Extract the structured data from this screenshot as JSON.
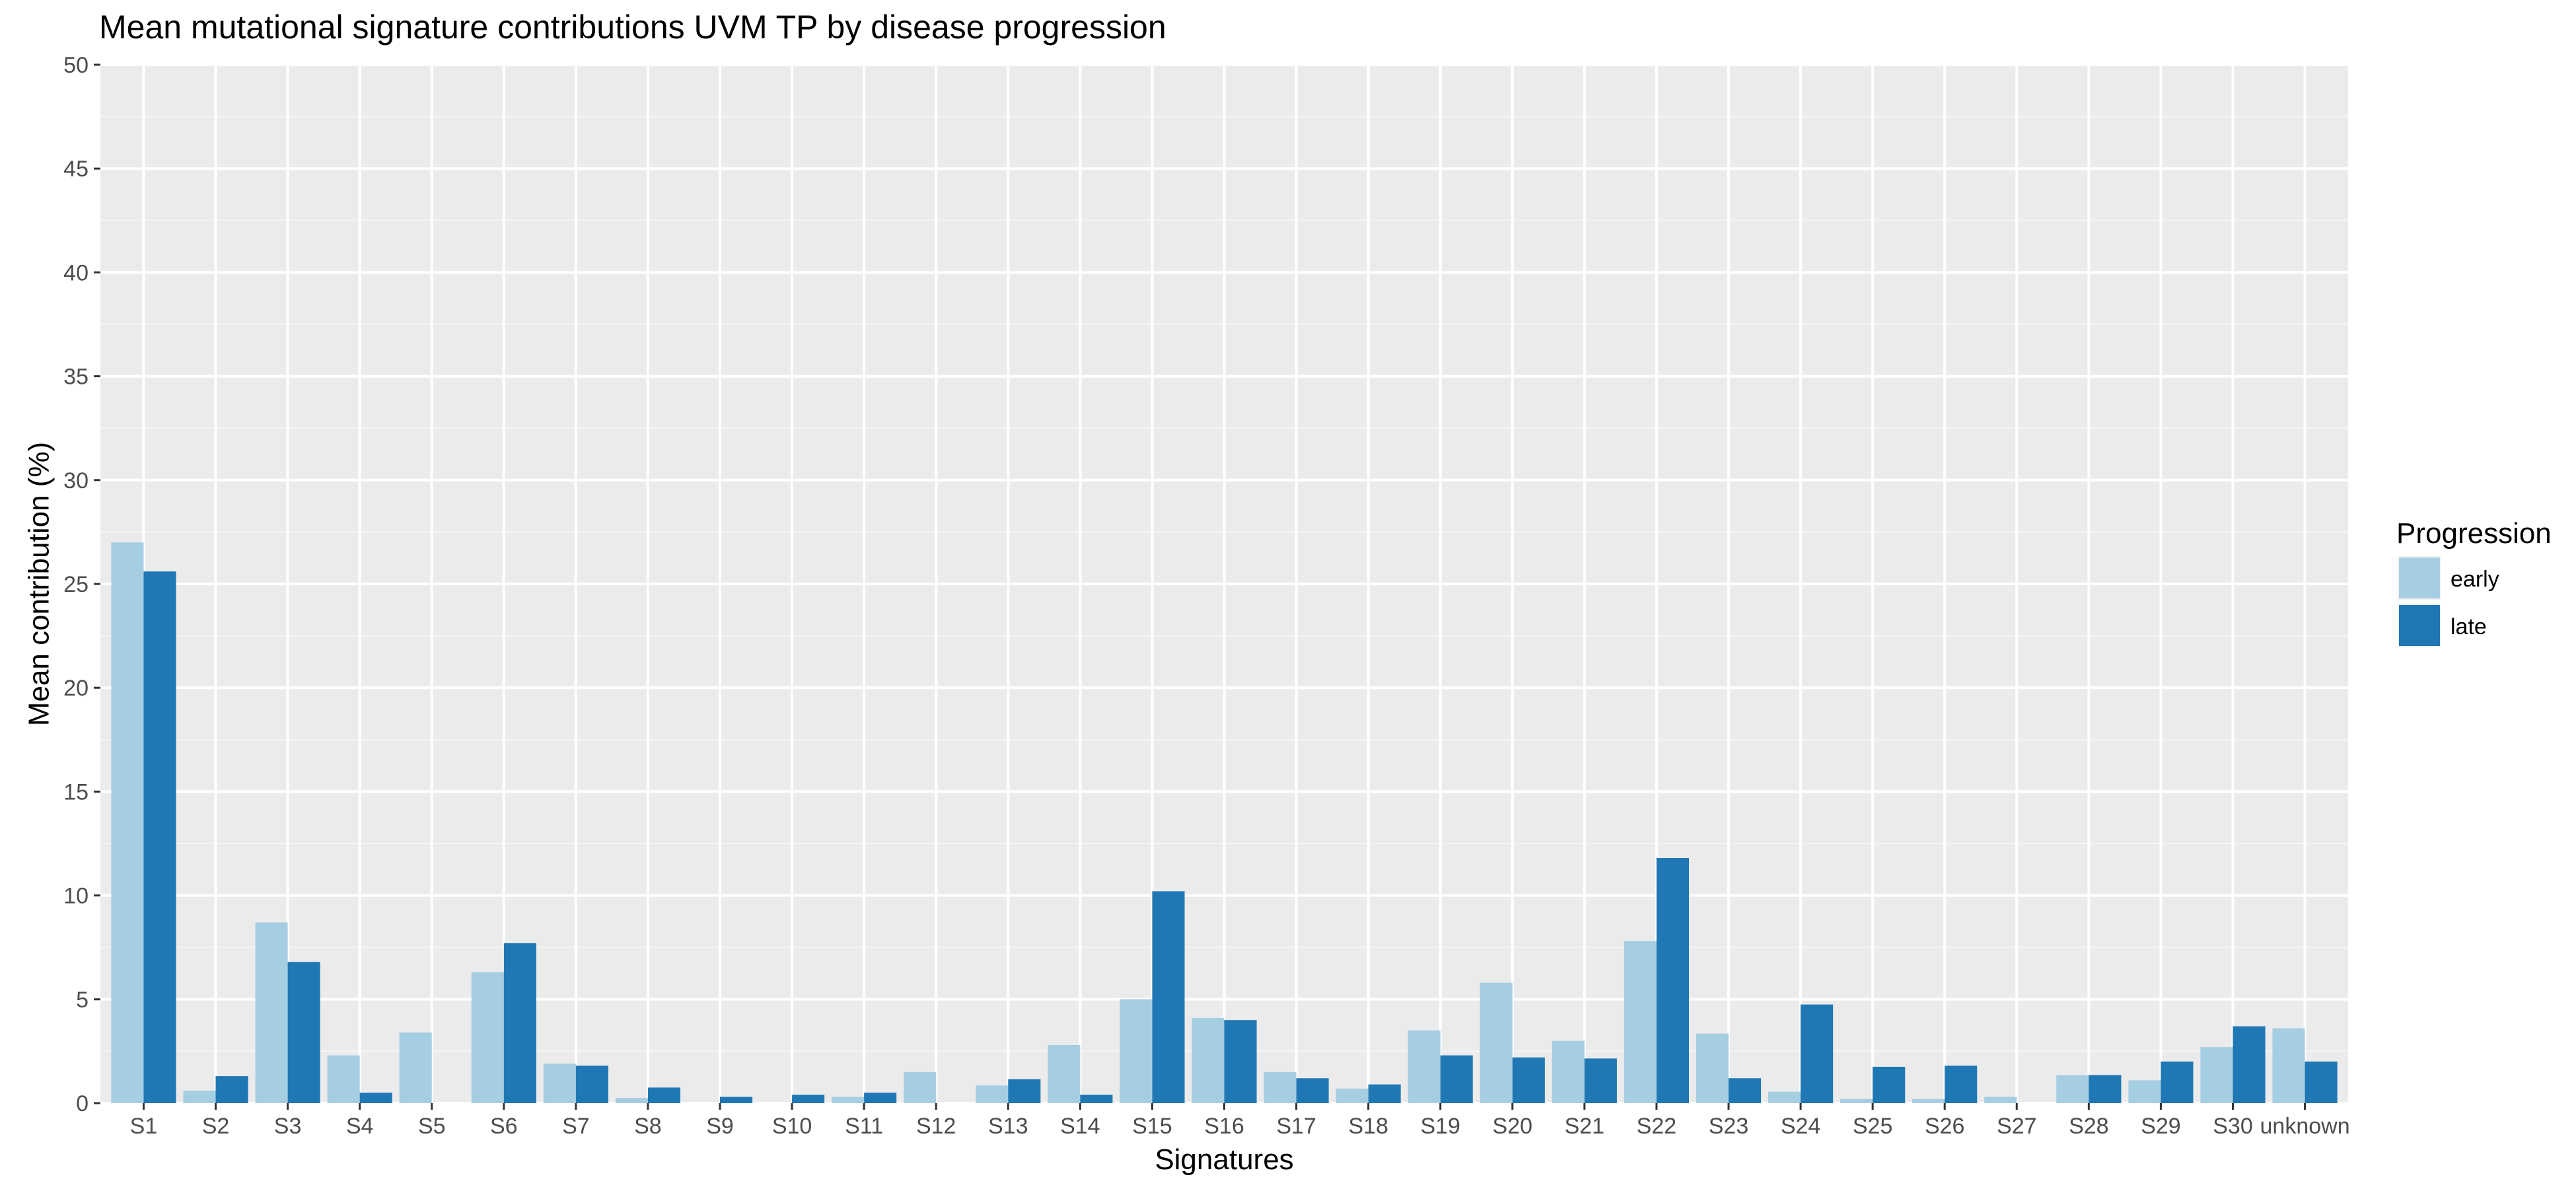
{
  "chart_data": {
    "type": "bar",
    "title": "Mean mutational signature contributions UVM TP by disease progression",
    "xlabel": "Signatures",
    "ylabel": "Mean contribution (%)",
    "ylim": [
      0,
      50
    ],
    "yticks": [
      0,
      5,
      10,
      15,
      20,
      25,
      30,
      35,
      40,
      45,
      50
    ],
    "grid": true,
    "legend_position": "right",
    "legend_title": "Progression",
    "categories": [
      "S1",
      "S2",
      "S3",
      "S4",
      "S5",
      "S6",
      "S7",
      "S8",
      "S9",
      "S10",
      "S11",
      "S12",
      "S13",
      "S14",
      "S15",
      "S16",
      "S17",
      "S18",
      "S19",
      "S20",
      "S21",
      "S22",
      "S23",
      "S24",
      "S25",
      "S26",
      "S27",
      "S28",
      "S29",
      "S30",
      "unknown"
    ],
    "series": [
      {
        "name": "early",
        "color": "#a6cee3",
        "values": [
          27.0,
          0.6,
          8.7,
          2.3,
          3.4,
          6.3,
          1.9,
          0.25,
          0.0,
          0.0,
          0.3,
          1.5,
          0.85,
          2.8,
          5.0,
          4.1,
          1.5,
          0.7,
          3.5,
          5.8,
          3.0,
          7.8,
          3.35,
          0.55,
          0.2,
          0.2,
          0.3,
          1.35,
          1.1,
          2.7,
          3.6
        ]
      },
      {
        "name": "late",
        "color": "#1f78b4",
        "values": [
          25.6,
          1.3,
          6.8,
          0.5,
          0.0,
          7.7,
          1.8,
          0.75,
          0.3,
          0.4,
          0.5,
          0.0,
          1.15,
          0.4,
          10.2,
          4.0,
          1.2,
          0.9,
          2.3,
          2.2,
          2.15,
          11.8,
          1.2,
          4.75,
          1.75,
          1.8,
          0.0,
          1.35,
          2.0,
          3.7,
          2.0
        ]
      }
    ]
  }
}
